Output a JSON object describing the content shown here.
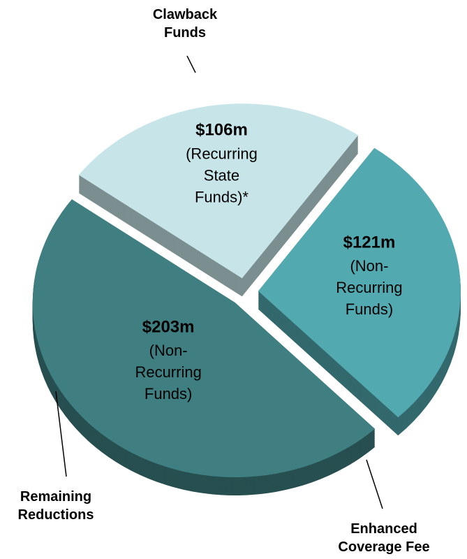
{
  "chart_data": {
    "type": "pie",
    "categories": [
      "Clawback Funds",
      "Enhanced Coverage Fee",
      "Remaining Reductions"
    ],
    "values": [
      121,
      203,
      106
    ],
    "value_labels": [
      "$121m",
      "$203m",
      "$106m"
    ],
    "notes": [
      "(Non-Recurring Funds)",
      "(Non-Recurring Funds)",
      "(Recurring State Funds)*"
    ],
    "colors": [
      "#52a9b0",
      "#3f7f81",
      "#c7e5e9"
    ],
    "value_label_colors": [
      "#ffffff",
      "#ffffff",
      "#000000"
    ]
  }
}
